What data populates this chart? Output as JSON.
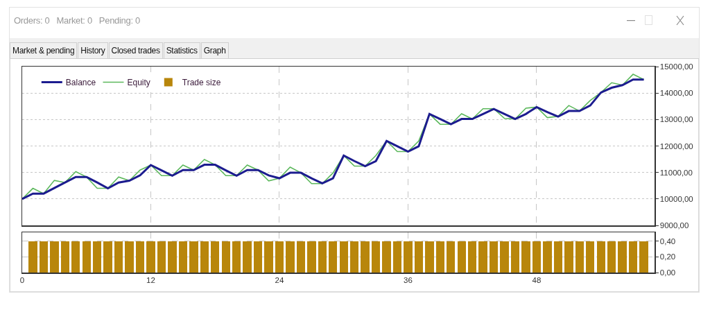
{
  "chart_data": [
    {
      "type": "line",
      "title": "Orders: 0   Market: 0   Pending: 0",
      "annotations": [
        "Market & pending",
        "History",
        "Closed trades",
        "Statistics",
        "Graph"
      ],
      "x": [
        0,
        1,
        2,
        3,
        4,
        5,
        6,
        7,
        8,
        9,
        10,
        11,
        12,
        13,
        14,
        15,
        16,
        17,
        18,
        19,
        20,
        21,
        22,
        23,
        24,
        25,
        26,
        27,
        28,
        29,
        30,
        31,
        32,
        33,
        34,
        35,
        36,
        37,
        38,
        39,
        40,
        41,
        42,
        43,
        44,
        45,
        46,
        47,
        48,
        49,
        50,
        51,
        52,
        53,
        54,
        55,
        56,
        57,
        58
      ],
      "series": [
        {
          "name": "Balance",
          "color": "#1c1c8f",
          "values": [
            10000,
            10200,
            10200,
            10410,
            10620,
            10830,
            10830,
            10620,
            10400,
            10620,
            10690,
            10890,
            11280,
            11080,
            10880,
            11090,
            11090,
            11290,
            11290,
            11080,
            10880,
            11090,
            11090,
            10890,
            10780,
            10990,
            10990,
            10780,
            10590,
            10780,
            11640,
            11430,
            11240,
            11430,
            12190,
            11990,
            11790,
            11990,
            13210,
            13020,
            12820,
            13020,
            13020,
            13210,
            13400,
            13210,
            13020,
            13210,
            13470,
            13280,
            13110,
            13320,
            13320,
            13530,
            14020,
            14200,
            14300,
            14510,
            14510
          ]
        },
        {
          "name": "Equity",
          "color": "#5cb85c",
          "values": [
            10000,
            10400,
            10200,
            10700,
            10620,
            11030,
            10830,
            10400,
            10400,
            10830,
            10690,
            11090,
            11280,
            10880,
            10880,
            11280,
            11090,
            11490,
            11290,
            10880,
            10880,
            11280,
            11090,
            10680,
            10780,
            11200,
            10990,
            10580,
            10580,
            10980,
            11640,
            11240,
            11240,
            11640,
            12190,
            11790,
            11790,
            12190,
            13210,
            12820,
            12820,
            13220,
            13020,
            13410,
            13410,
            13040,
            13020,
            13430,
            13470,
            13070,
            13120,
            13530,
            13320,
            13720,
            14020,
            14390,
            14300,
            14710,
            14510
          ]
        }
      ],
      "xlim": [
        0,
        59
      ],
      "xticks": [
        0,
        12,
        24,
        36,
        48
      ],
      "ylim": [
        9000,
        15000
      ],
      "yticks": [
        {
          "value": 9000,
          "label": "9000,00"
        },
        {
          "value": 10000,
          "label": "10000,00"
        },
        {
          "value": 11000,
          "label": "11000,00"
        },
        {
          "value": 12000,
          "label": "12000,00"
        },
        {
          "value": 13000,
          "label": "13000,00"
        },
        {
          "value": 14000,
          "label": "14000,00"
        },
        {
          "value": 15000,
          "label": "15000,00"
        }
      ],
      "tick_labels": "y",
      "grid": true,
      "legend": "top left"
    },
    {
      "type": "bar",
      "x": [
        1,
        2,
        3,
        4,
        5,
        6,
        7,
        8,
        9,
        10,
        11,
        12,
        13,
        14,
        15,
        16,
        17,
        18,
        19,
        20,
        21,
        22,
        23,
        24,
        25,
        26,
        27,
        28,
        29,
        30,
        31,
        32,
        33,
        34,
        35,
        36,
        37,
        38,
        39,
        40,
        41,
        42,
        43,
        44,
        45,
        46,
        47,
        48,
        49,
        50,
        51,
        52,
        53,
        54,
        55,
        56,
        57,
        58
      ],
      "series": [
        {
          "name": "Trade size",
          "color": "#b8860b",
          "values": [
            0.4,
            0.4,
            0.4,
            0.4,
            0.4,
            0.4,
            0.4,
            0.4,
            0.4,
            0.4,
            0.4,
            0.4,
            0.4,
            0.4,
            0.4,
            0.4,
            0.4,
            0.4,
            0.4,
            0.4,
            0.4,
            0.4,
            0.4,
            0.4,
            0.4,
            0.4,
            0.4,
            0.4,
            0.4,
            0.4,
            0.4,
            0.4,
            0.4,
            0.4,
            0.4,
            0.4,
            0.4,
            0.4,
            0.4,
            0.4,
            0.4,
            0.4,
            0.4,
            0.4,
            0.4,
            0.4,
            0.4,
            0.4,
            0.4,
            0.4,
            0.4,
            0.4,
            0.4,
            0.4,
            0.4,
            0.4,
            0.4,
            0.4
          ]
        }
      ],
      "xlim": [
        0,
        59
      ],
      "xticks": [
        0,
        12,
        24,
        36,
        48
      ],
      "ylim": [
        0,
        0.51
      ],
      "yticks": [
        {
          "value": 0,
          "label": "0,00"
        },
        {
          "value": 0.2,
          "label": "0,20"
        },
        {
          "value": 0.4,
          "label": "0,40"
        }
      ],
      "grid": true,
      "legend": "top left"
    }
  ]
}
